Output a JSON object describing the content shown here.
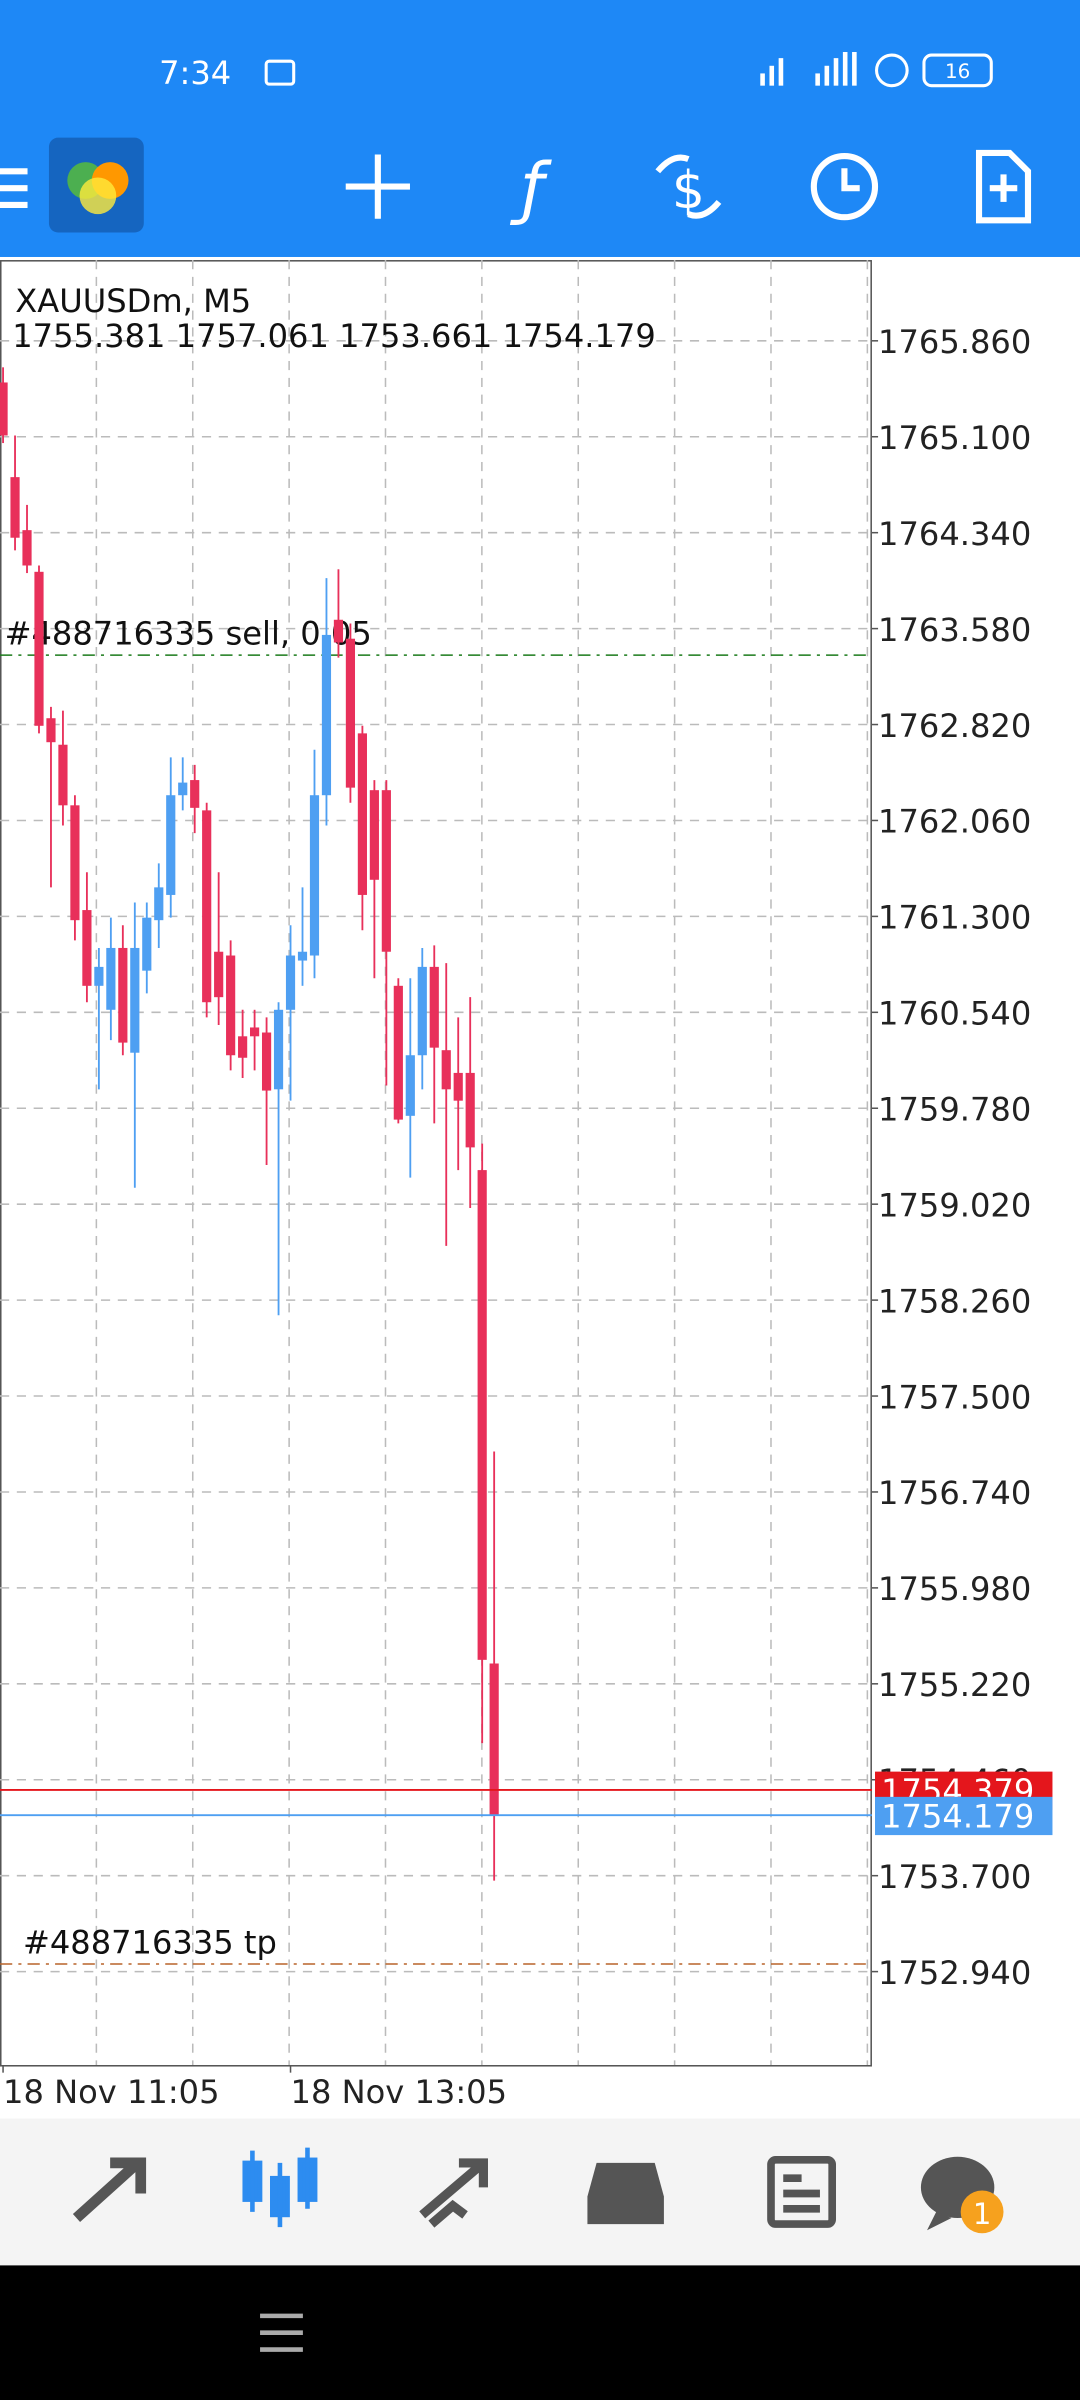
{
  "status_bar": {
    "time": "7:34",
    "battery": "16"
  },
  "chart_data": {
    "type": "candlestick",
    "title": "XAUUSDm, M5",
    "categories": [
      "18 Nov 11:05",
      null,
      null,
      null,
      null,
      null,
      null,
      null,
      null,
      null,
      null,
      null,
      null,
      null,
      null,
      null,
      null,
      null,
      null,
      null,
      null,
      null,
      null,
      null,
      "18 Nov 13:05",
      null,
      null,
      null,
      null,
      null,
      null,
      null,
      null,
      null,
      null,
      null,
      null,
      null,
      null,
      null,
      null,
      null
    ],
    "open": [
      1765.53,
      1764.78,
      1764.36,
      1764.03,
      1762.87,
      1762.66,
      1762.18,
      1761.35,
      1760.75,
      1760.56,
      1761.05,
      1760.22,
      1760.87,
      1761.27,
      1761.47,
      1762.26,
      1762.38,
      1762.14,
      1761.02,
      1760.99,
      1760.35,
      1760.42,
      1760.38,
      1759.93,
      1760.56,
      1760.95,
      1760.99,
      1762.26,
      1763.65,
      1763.5,
      1762.75,
      1762.3,
      1762.3,
      1760.75,
      1759.72,
      1760.2,
      1760.9,
      1760.24,
      1760.06,
      1760.06,
      1759.29,
      1755.381
    ],
    "high": [
      1765.65,
      1765.11,
      1764.56,
      1764.08,
      1762.96,
      1762.93,
      1762.26,
      1761.65,
      1761.05,
      1761.29,
      1761.23,
      1761.41,
      1761.41,
      1761.72,
      1762.56,
      1762.56,
      1762.5,
      1762.2,
      1761.65,
      1761.11,
      1760.56,
      1760.56,
      1760.5,
      1760.62,
      1761.23,
      1761.53,
      1762.62,
      1763.98,
      1764.05,
      1763.62,
      1762.81,
      1762.38,
      1762.38,
      1760.81,
      1760.81,
      1761.05,
      1761.07,
      1760.93,
      1760.5,
      1760.66,
      1759.5,
      1757.061
    ],
    "low": [
      1765.05,
      1764.2,
      1764.02,
      1762.75,
      1761.53,
      1762.02,
      1761.11,
      1760.62,
      1759.93,
      1760.32,
      1760.2,
      1759.15,
      1760.69,
      1761.05,
      1761.29,
      1762.14,
      1761.96,
      1760.5,
      1760.44,
      1760.08,
      1760.02,
      1760.08,
      1759.33,
      1758.14,
      1759.84,
      1760.75,
      1760.81,
      1762.02,
      1763.35,
      1762.2,
      1761.19,
      1760.81,
      1759.96,
      1759.66,
      1759.23,
      1759.93,
      1759.66,
      1758.69,
      1759.29,
      1758.99,
      1754.75,
      1753.661
    ],
    "close": [
      1765.11,
      1764.3,
      1764.08,
      1762.81,
      1762.68,
      1762.18,
      1761.27,
      1760.75,
      1760.9,
      1761.05,
      1760.3,
      1761.05,
      1761.29,
      1761.53,
      1762.26,
      1762.36,
      1762.16,
      1760.62,
      1760.66,
      1760.2,
      1760.18,
      1760.35,
      1759.92,
      1760.56,
      1760.99,
      1761.02,
      1762.26,
      1763.53,
      1763.47,
      1762.32,
      1761.47,
      1761.59,
      1761.02,
      1759.69,
      1760.2,
      1760.9,
      1760.26,
      1759.93,
      1759.84,
      1759.47,
      1755.41,
      1754.179
    ],
    "up_color": "#4e9ff2",
    "down_color": "#e8305a",
    "ylim": [
      1752.2,
      1766.5
    ],
    "yticks": [
      {
        "value": 1765.86,
        "label": "1765.860"
      },
      {
        "value": 1765.1,
        "label": "1765.100"
      },
      {
        "value": 1764.34,
        "label": "1764.340"
      },
      {
        "value": 1763.58,
        "label": "1763.580"
      },
      {
        "value": 1762.82,
        "label": "1762.820"
      },
      {
        "value": 1762.06,
        "label": "1762.060"
      },
      {
        "value": 1761.3,
        "label": "1761.300"
      },
      {
        "value": 1760.54,
        "label": "1760.540"
      },
      {
        "value": 1759.78,
        "label": "1759.780"
      },
      {
        "value": 1759.02,
        "label": "1759.020"
      },
      {
        "value": 1758.26,
        "label": "1758.260"
      },
      {
        "value": 1757.5,
        "label": "1757.500"
      },
      {
        "value": 1756.74,
        "label": "1756.740"
      },
      {
        "value": 1755.98,
        "label": "1755.980"
      },
      {
        "value": 1755.22,
        "label": "1755.220"
      },
      {
        "value": 1754.46,
        "label": "1754.460"
      },
      {
        "value": 1753.7,
        "label": "1753.700"
      },
      {
        "value": 1752.94,
        "label": "1752.940"
      }
    ],
    "grid": true,
    "ask": 1754.379,
    "ask_color": "#e4161c",
    "bid": 1754.179,
    "bid_color": "#4e9ff2",
    "orders": [
      {
        "label": "#488716335 sell, 0.05",
        "price": 1763.37,
        "color": "#1a7a1a"
      },
      {
        "label": "#488716335 tp",
        "price": 1753.0,
        "color": "#b8642a"
      }
    ]
  },
  "bottom_nav": {
    "chat_badge": "1"
  }
}
